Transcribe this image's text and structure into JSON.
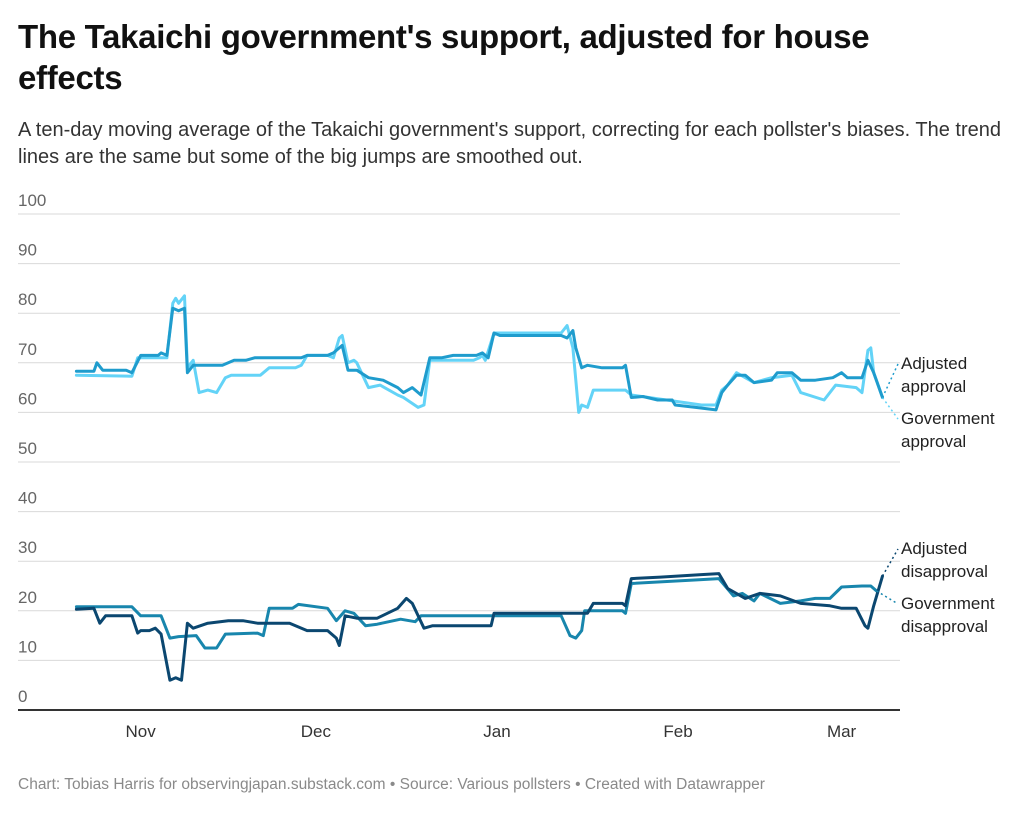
{
  "header": {
    "title": "The Takaichi government's support, adjusted for house effects",
    "subtitle": "A ten-day moving average of the Takaichi government's support, correcting for each pollster's biases. The trend lines are the same but some of the big jumps are smoothed out."
  },
  "footer": {
    "credit": "Chart: Tobias Harris for observingjapan.substack.com",
    "separator": "•",
    "source": "Source: Various pollsters",
    "tool": "Created with Datawrapper"
  },
  "chart_data": {
    "type": "line",
    "title": "The Takaichi government's support, adjusted for house effects",
    "xlabel": "",
    "ylabel": "",
    "xlim": [
      "2025-10-11",
      "2026-03-11"
    ],
    "ylim": [
      0,
      100
    ],
    "grid": true,
    "legend": "direct labels at right end of lines",
    "yticks": [
      0,
      10,
      20,
      30,
      40,
      50,
      60,
      70,
      80,
      90,
      100
    ],
    "xticks": [
      {
        "date": "2025-11-01",
        "label": "Nov"
      },
      {
        "date": "2025-12-01",
        "label": "Dec"
      },
      {
        "date": "2026-01-01",
        "label": "Jan"
      },
      {
        "date": "2026-02-01",
        "label": "Feb"
      },
      {
        "date": "2026-03-01",
        "label": "Mar"
      }
    ],
    "series": [
      {
        "name": "Government approval",
        "label_lines": [
          "Government",
          "approval"
        ],
        "color": "#63d3f7",
        "points": [
          [
            "2025-10-21T00",
            67.5
          ],
          [
            "2025-10-30T12",
            67.3
          ],
          [
            "2025-10-31T12",
            71
          ],
          [
            "2025-11-04T12",
            71
          ],
          [
            "2025-11-05T12",
            71
          ],
          [
            "2025-11-06T12",
            82
          ],
          [
            "2025-11-07T00",
            83
          ],
          [
            "2025-11-07T12",
            82
          ],
          [
            "2025-11-08T12",
            83.5
          ],
          [
            "2025-11-09T00",
            69
          ],
          [
            "2025-11-10T00",
            70.5
          ],
          [
            "2025-11-11T00",
            64
          ],
          [
            "2025-11-12T12",
            64.5
          ],
          [
            "2025-11-14T00",
            64
          ],
          [
            "2025-11-15T12",
            67
          ],
          [
            "2025-11-16T12",
            67.5
          ],
          [
            "2025-11-21T12",
            67.5
          ],
          [
            "2025-11-23T00",
            69
          ],
          [
            "2025-11-27T12",
            69
          ],
          [
            "2025-11-28T12",
            69.5
          ],
          [
            "2025-11-29T12",
            71.5
          ],
          [
            "2025-12-03T00",
            71.5
          ],
          [
            "2025-12-04T00",
            71
          ],
          [
            "2025-12-05T00",
            75
          ],
          [
            "2025-12-05T12",
            75.5
          ],
          [
            "2025-12-06T12",
            70
          ],
          [
            "2025-12-07T12",
            70.5
          ],
          [
            "2025-12-08T00",
            70
          ],
          [
            "2025-12-10T00",
            65
          ],
          [
            "2025-12-12T00",
            65.5
          ],
          [
            "2025-12-15T00",
            63.5
          ],
          [
            "2025-12-16T00",
            63
          ],
          [
            "2025-12-18T12",
            61
          ],
          [
            "2025-12-19T12",
            61.5
          ],
          [
            "2025-12-20T12",
            70.5
          ],
          [
            "2025-12-28T00",
            70.5
          ],
          [
            "2025-12-29T00",
            71
          ],
          [
            "2025-12-29T12",
            71.5
          ],
          [
            "2025-12-30T00",
            70.5
          ],
          [
            "2025-12-31T12",
            76
          ],
          [
            "2026-01-12T00",
            76
          ],
          [
            "2026-01-13T00",
            77.5
          ],
          [
            "2026-01-14T00",
            73
          ],
          [
            "2026-01-15T00",
            60
          ],
          [
            "2026-01-15T12",
            61.5
          ],
          [
            "2026-01-16T12",
            61
          ],
          [
            "2026-01-17T12",
            64.5
          ],
          [
            "2026-01-23T00",
            64.5
          ],
          [
            "2026-01-24T00",
            63.5
          ],
          [
            "2026-02-05T00",
            61.5
          ],
          [
            "2026-02-07T12",
            61.5
          ],
          [
            "2026-02-08T12",
            64.5
          ],
          [
            "2026-02-09T12",
            65.5
          ],
          [
            "2026-02-11T00",
            68
          ],
          [
            "2026-02-14T00",
            66
          ],
          [
            "2026-02-17T00",
            67
          ],
          [
            "2026-02-20T12",
            67.5
          ],
          [
            "2026-02-22T00",
            64
          ],
          [
            "2026-02-26T00",
            62.5
          ],
          [
            "2026-02-28T00",
            65.5
          ],
          [
            "2026-03-03T12",
            65
          ],
          [
            "2026-03-04T12",
            64
          ],
          [
            "2026-03-05T12",
            72.5
          ],
          [
            "2026-03-06T00",
            73
          ],
          [
            "2026-03-06T12",
            68
          ],
          [
            "2026-03-08T00",
            63
          ]
        ]
      },
      {
        "name": "Adjusted approval",
        "label_lines": [
          "Adjusted",
          "approval"
        ],
        "color": "#1f9ccd",
        "points": [
          [
            "2025-10-21T00",
            68.3
          ],
          [
            "2025-10-24T00",
            68.3
          ],
          [
            "2025-10-24T12",
            70
          ],
          [
            "2025-10-25T12",
            68.5
          ],
          [
            "2025-10-29T12",
            68.5
          ],
          [
            "2025-10-30T12",
            68
          ],
          [
            "2025-11-01T00",
            71.5
          ],
          [
            "2025-11-04T00",
            71.5
          ],
          [
            "2025-11-04T12",
            72
          ],
          [
            "2025-11-05T12",
            71.5
          ],
          [
            "2025-11-06T12",
            81
          ],
          [
            "2025-11-07T12",
            80.5
          ],
          [
            "2025-11-08T12",
            81
          ],
          [
            "2025-11-09T00",
            68
          ],
          [
            "2025-11-10T00",
            69.5
          ],
          [
            "2025-11-15T00",
            69.5
          ],
          [
            "2025-11-17T00",
            70.5
          ],
          [
            "2025-11-19T00",
            70.5
          ],
          [
            "2025-11-20T12",
            71
          ],
          [
            "2025-11-28T12",
            71
          ],
          [
            "2025-11-29T12",
            71.5
          ],
          [
            "2025-12-03T00",
            71.5
          ],
          [
            "2025-12-04T00",
            72
          ],
          [
            "2025-12-05T12",
            73.5
          ],
          [
            "2025-12-06T12",
            68.5
          ],
          [
            "2025-12-08T00",
            68.5
          ],
          [
            "2025-12-10T00",
            67
          ],
          [
            "2025-12-12T12",
            66.5
          ],
          [
            "2025-12-15T00",
            65
          ],
          [
            "2025-12-16T00",
            64
          ],
          [
            "2025-12-17T12",
            65
          ],
          [
            "2025-12-19T00",
            63.5
          ],
          [
            "2025-12-20T12",
            71
          ],
          [
            "2025-12-22T12",
            71
          ],
          [
            "2025-12-24T12",
            71.5
          ],
          [
            "2025-12-28T12",
            71.5
          ],
          [
            "2025-12-29T12",
            72
          ],
          [
            "2025-12-30T12",
            71
          ],
          [
            "2025-12-31T12",
            76
          ],
          [
            "2026-01-01T12",
            75.5
          ],
          [
            "2026-01-05T00",
            75.5
          ],
          [
            "2026-01-12T00",
            75.5
          ],
          [
            "2026-01-13T00",
            75
          ],
          [
            "2026-01-14T00",
            76.5
          ],
          [
            "2026-01-14T12",
            73
          ],
          [
            "2026-01-15T12",
            69
          ],
          [
            "2026-01-16T12",
            69.5
          ],
          [
            "2026-01-19T00",
            69
          ],
          [
            "2026-01-22T12",
            69
          ],
          [
            "2026-01-23T00",
            69.5
          ],
          [
            "2026-01-24T00",
            63
          ],
          [
            "2026-01-26T00",
            63.2
          ],
          [
            "2026-01-28T12",
            62.5
          ],
          [
            "2026-01-31T00",
            62.5
          ],
          [
            "2026-01-31T12",
            61.5
          ],
          [
            "2026-02-04T00",
            61
          ],
          [
            "2026-02-07T12",
            60.5
          ],
          [
            "2026-02-08T12",
            64
          ],
          [
            "2026-02-09T12",
            65.5
          ],
          [
            "2026-02-11T00",
            67.5
          ],
          [
            "2026-02-12T12",
            67.5
          ],
          [
            "2026-02-14T00",
            66
          ],
          [
            "2026-02-17T00",
            66.5
          ],
          [
            "2026-02-18T00",
            68
          ],
          [
            "2026-02-20T12",
            68
          ],
          [
            "2026-02-22T00",
            66.5
          ],
          [
            "2026-02-24T12",
            66.5
          ],
          [
            "2026-02-27T12",
            67
          ],
          [
            "2026-03-01T00",
            68
          ],
          [
            "2026-03-02T00",
            67
          ],
          [
            "2026-03-04T12",
            67
          ],
          [
            "2026-03-05T12",
            70.5
          ],
          [
            "2026-03-06T12",
            68
          ],
          [
            "2026-03-08T00",
            63
          ]
        ]
      },
      {
        "name": "Government disapproval",
        "label_lines": [
          "Government",
          "disapproval"
        ],
        "color": "#1886ad",
        "points": [
          [
            "2025-10-21T00",
            20.8
          ],
          [
            "2025-10-30T12",
            20.8
          ],
          [
            "2025-11-01T00",
            19
          ],
          [
            "2025-11-04T12",
            19
          ],
          [
            "2025-11-06T00",
            14.5
          ],
          [
            "2025-11-07T12",
            14.8
          ],
          [
            "2025-11-10T12",
            15
          ],
          [
            "2025-11-12T00",
            12.5
          ],
          [
            "2025-11-14T00",
            12.5
          ],
          [
            "2025-11-15T12",
            15.3
          ],
          [
            "2025-11-21T00",
            15.5
          ],
          [
            "2025-11-22T00",
            15
          ],
          [
            "2025-11-23T00",
            20.5
          ],
          [
            "2025-11-27T00",
            20.5
          ],
          [
            "2025-11-28T00",
            21.3
          ],
          [
            "2025-12-03T00",
            20.5
          ],
          [
            "2025-12-04T12",
            18
          ],
          [
            "2025-12-06T00",
            20
          ],
          [
            "2025-12-07T12",
            19.5
          ],
          [
            "2025-12-09T12",
            17
          ],
          [
            "2025-12-11T12",
            17.3
          ],
          [
            "2025-12-15T12",
            18.3
          ],
          [
            "2025-12-18T00",
            17.8
          ],
          [
            "2025-12-19T00",
            19
          ],
          [
            "2025-12-28T00",
            19
          ],
          [
            "2026-01-12T00",
            19
          ],
          [
            "2026-01-13T12",
            15
          ],
          [
            "2026-01-14T12",
            14.5
          ],
          [
            "2026-01-15T12",
            16
          ],
          [
            "2026-01-16T00",
            20
          ],
          [
            "2026-01-22T12",
            20
          ],
          [
            "2026-01-23T00",
            19.5
          ],
          [
            "2026-01-24T00",
            25.5
          ],
          [
            "2026-02-05T00",
            26.3
          ],
          [
            "2026-02-08T00",
            26.5
          ],
          [
            "2026-02-10T12",
            23
          ],
          [
            "2026-02-12T00",
            23.5
          ],
          [
            "2026-02-14T00",
            22
          ],
          [
            "2026-02-15T00",
            23.5
          ],
          [
            "2026-02-18T12",
            21.5
          ],
          [
            "2026-02-22T00",
            22
          ],
          [
            "2026-02-24T12",
            22.5
          ],
          [
            "2026-02-27T00",
            22.5
          ],
          [
            "2026-03-01T00",
            24.8
          ],
          [
            "2026-03-04T12",
            25
          ],
          [
            "2026-03-06T00",
            25
          ],
          [
            "2026-03-07T00",
            24
          ]
        ]
      },
      {
        "name": "Adjusted disapproval",
        "label_lines": [
          "Adjusted",
          "disapproval"
        ],
        "color": "#0b4770",
        "points": [
          [
            "2025-10-21T00",
            20.3
          ],
          [
            "2025-10-24T00",
            20.5
          ],
          [
            "2025-10-25T00",
            17.5
          ],
          [
            "2025-10-26T00",
            19
          ],
          [
            "2025-10-30T12",
            19
          ],
          [
            "2025-10-31T12",
            15.5
          ],
          [
            "2025-11-01T00",
            16
          ],
          [
            "2025-11-02T12",
            16
          ],
          [
            "2025-11-03T12",
            16.5
          ],
          [
            "2025-11-04T12",
            15.3
          ],
          [
            "2025-11-06T00",
            6
          ],
          [
            "2025-11-07T00",
            6.5
          ],
          [
            "2025-11-08T00",
            6
          ],
          [
            "2025-11-09T00",
            17.5
          ],
          [
            "2025-11-10T00",
            16.5
          ],
          [
            "2025-11-12T12",
            17.5
          ],
          [
            "2025-11-16T00",
            18
          ],
          [
            "2025-11-18T12",
            18
          ],
          [
            "2025-11-21T00",
            17.5
          ],
          [
            "2025-11-26T12",
            17.5
          ],
          [
            "2025-11-29T12",
            16
          ],
          [
            "2025-12-03T00",
            16
          ],
          [
            "2025-12-04T12",
            14.5
          ],
          [
            "2025-12-05T00",
            13
          ],
          [
            "2025-12-06T00",
            19
          ],
          [
            "2025-12-08T00",
            18.5
          ],
          [
            "2025-12-11T12",
            18.5
          ],
          [
            "2025-12-15T00",
            20.5
          ],
          [
            "2025-12-16T12",
            22.5
          ],
          [
            "2025-12-17T12",
            21.5
          ],
          [
            "2025-12-19T12",
            16.5
          ],
          [
            "2025-12-21T00",
            17
          ],
          [
            "2025-12-31T00",
            17
          ],
          [
            "2025-12-31T12",
            19.5
          ],
          [
            "2026-01-12T00",
            19.5
          ],
          [
            "2026-01-16T12",
            19.5
          ],
          [
            "2026-01-17T12",
            21.5
          ],
          [
            "2026-01-22T12",
            21.5
          ],
          [
            "2026-01-23T00",
            21
          ],
          [
            "2026-01-24T00",
            26.5
          ],
          [
            "2026-01-29T00",
            26.8
          ],
          [
            "2026-02-05T00",
            27.3
          ],
          [
            "2026-02-08T00",
            27.5
          ],
          [
            "2026-02-09T12",
            24.5
          ],
          [
            "2026-02-12T12",
            22.5
          ],
          [
            "2026-02-15T00",
            23.5
          ],
          [
            "2026-02-18T12",
            23
          ],
          [
            "2026-02-22T00",
            21.5
          ],
          [
            "2026-02-27T00",
            21
          ],
          [
            "2026-03-01T00",
            20.5
          ],
          [
            "2026-03-03T12",
            20.5
          ],
          [
            "2026-03-05T00",
            17
          ],
          [
            "2026-03-05T12",
            16.5
          ],
          [
            "2026-03-06T12",
            21
          ],
          [
            "2026-03-08T00",
            27
          ]
        ]
      }
    ]
  }
}
